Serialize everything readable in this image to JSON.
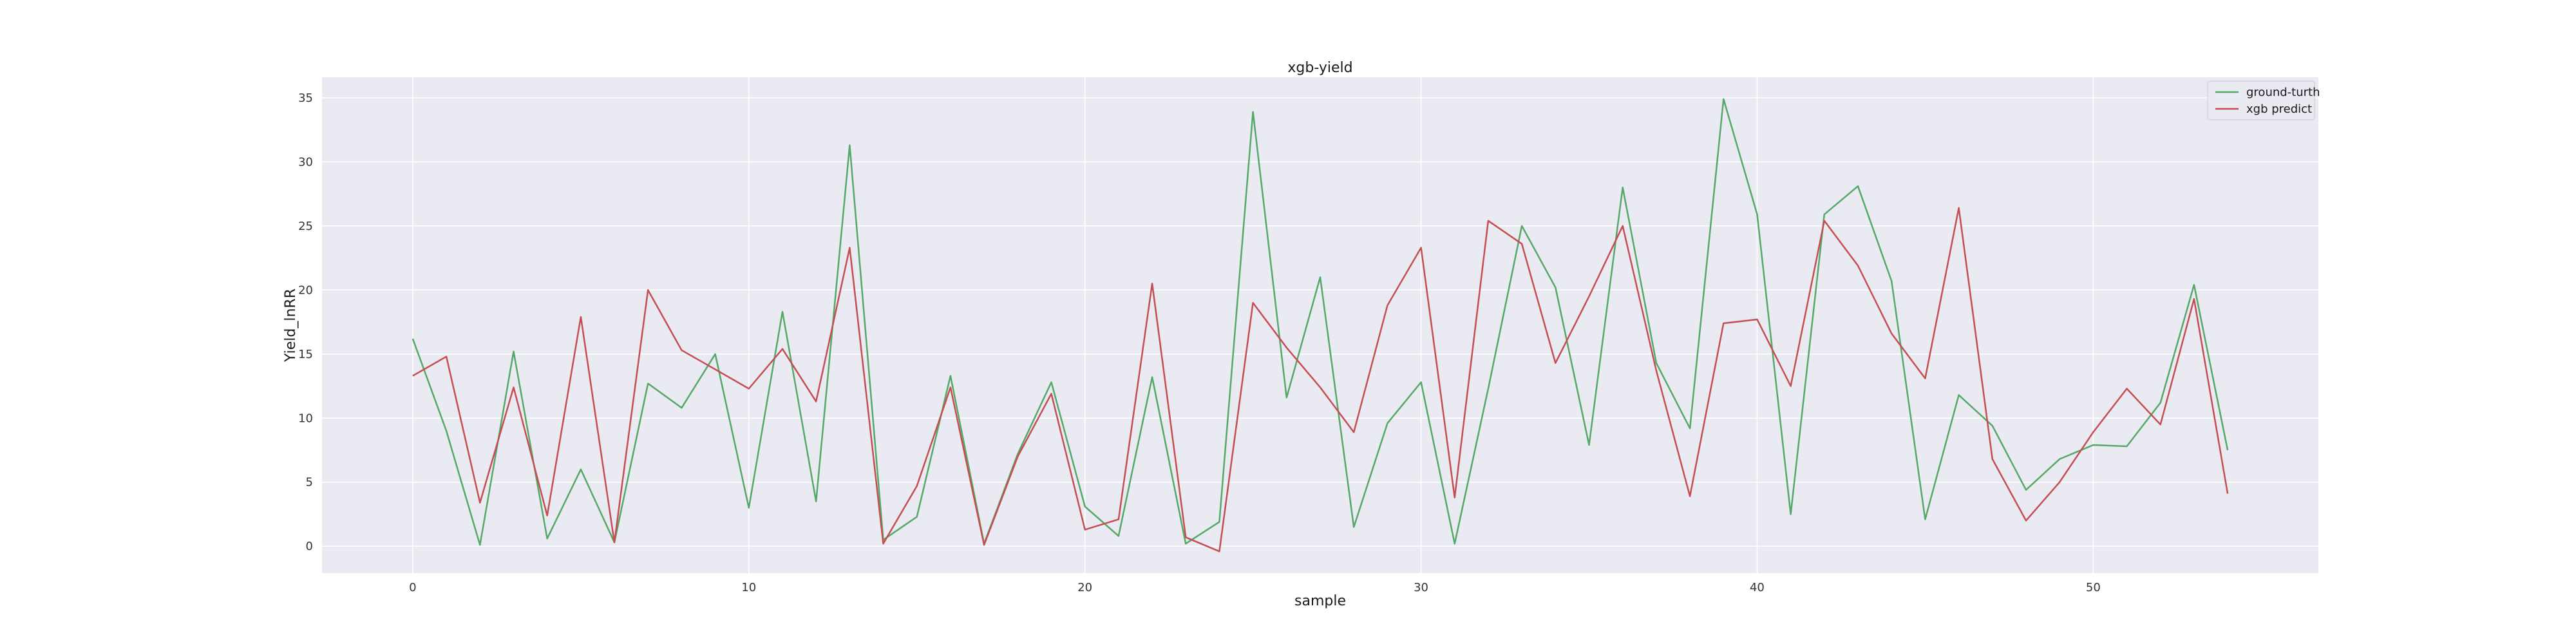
{
  "chart_data": {
    "type": "line",
    "title": "xgb-yield",
    "xlabel": "sample",
    "ylabel": "Yield_lnRR",
    "xlim": [
      -2.7,
      56.7
    ],
    "ylim": [
      -2.1,
      36.6
    ],
    "xticks": [
      0,
      10,
      20,
      30,
      40,
      50
    ],
    "yticks": [
      0,
      5,
      10,
      15,
      20,
      25,
      30,
      35
    ],
    "grid": true,
    "legend_position": "top-right",
    "x": [
      0,
      1,
      2,
      3,
      4,
      5,
      6,
      7,
      8,
      9,
      10,
      11,
      12,
      13,
      14,
      15,
      16,
      17,
      18,
      19,
      20,
      21,
      22,
      23,
      24,
      25,
      26,
      27,
      28,
      29,
      30,
      31,
      32,
      33,
      34,
      35,
      36,
      37,
      38,
      39,
      40,
      41,
      42,
      43,
      44,
      45,
      46,
      47,
      48,
      49,
      50,
      51,
      52,
      53,
      54
    ],
    "series": [
      {
        "name": "ground-turth",
        "color": "#55a868",
        "values": [
          16.2,
          9.0,
          0.1,
          15.2,
          0.6,
          6.0,
          0.3,
          12.7,
          10.8,
          15.0,
          3.0,
          18.3,
          3.5,
          31.3,
          0.5,
          2.3,
          13.3,
          0.2,
          7.2,
          12.8,
          3.1,
          0.8,
          13.2,
          0.2,
          1.9,
          33.9,
          11.6,
          21.0,
          1.5,
          9.6,
          12.8,
          0.2,
          12.3,
          25.0,
          20.2,
          7.9,
          28.0,
          14.3,
          9.2,
          34.9,
          25.9,
          2.5,
          25.9,
          28.1,
          20.7,
          2.1,
          11.8,
          9.4,
          4.4,
          6.8,
          7.9,
          7.8,
          11.2,
          20.4,
          7.5
        ]
      },
      {
        "name": "xgb predict",
        "color": "#c44e52",
        "values": [
          13.3,
          14.8,
          3.4,
          12.4,
          2.4,
          17.9,
          0.3,
          20.0,
          15.3,
          13.8,
          12.3,
          15.4,
          11.3,
          23.3,
          0.2,
          4.7,
          12.4,
          0.1,
          7.0,
          11.9,
          1.3,
          2.1,
          20.5,
          0.7,
          -0.4,
          19.0,
          15.5,
          12.4,
          8.9,
          18.8,
          23.3,
          3.8,
          25.4,
          23.6,
          14.3,
          19.5,
          25.0,
          13.7,
          3.9,
          17.4,
          17.7,
          12.5,
          25.4,
          21.9,
          16.6,
          13.1,
          26.4,
          6.8,
          2.0,
          5.0,
          8.9,
          12.3,
          9.5,
          19.3,
          4.1
        ]
      }
    ]
  }
}
